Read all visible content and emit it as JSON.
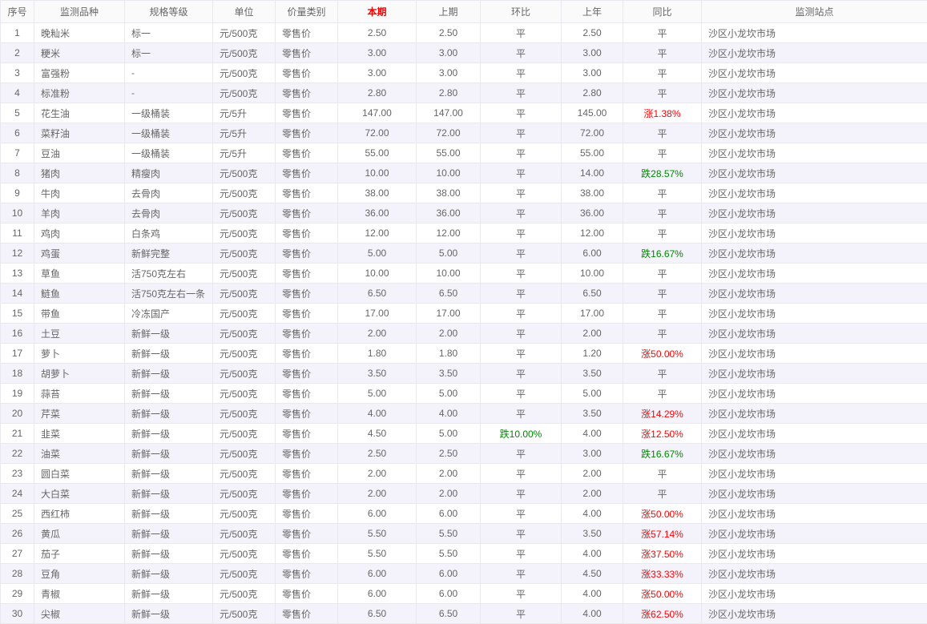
{
  "colors": {
    "up_red": "#ff0000",
    "down_green": "#008800",
    "header_highlight_red": "#ff0000",
    "text_gray": "#666666",
    "stripe_lavender": "#f4f2fa",
    "border_gray": "#e9e8ee",
    "header_bg": "#fafafa"
  },
  "table": {
    "columns": [
      {
        "key": "no",
        "label": "序号"
      },
      {
        "key": "variety",
        "label": "监测品种"
      },
      {
        "key": "spec",
        "label": "规格等级"
      },
      {
        "key": "unit",
        "label": "单位"
      },
      {
        "key": "category",
        "label": "价量类别"
      },
      {
        "key": "current",
        "label": "本期",
        "highlight": true
      },
      {
        "key": "previous",
        "label": "上期"
      },
      {
        "key": "mom",
        "label": "环比"
      },
      {
        "key": "last_year",
        "label": "上年"
      },
      {
        "key": "yoy",
        "label": "同比"
      },
      {
        "key": "station",
        "label": "监测站点"
      }
    ],
    "rows": [
      {
        "no": "1",
        "variety": "晚籼米",
        "spec": "标一",
        "unit": "元/500克",
        "category": "零售价",
        "current": "2.50",
        "previous": "2.50",
        "mom": "平",
        "mom_trend": "flat",
        "last_year": "2.50",
        "yoy": "平",
        "yoy_trend": "flat",
        "station": "沙区小龙坎市场"
      },
      {
        "no": "2",
        "variety": "粳米",
        "spec": "标一",
        "unit": "元/500克",
        "category": "零售价",
        "current": "3.00",
        "previous": "3.00",
        "mom": "平",
        "mom_trend": "flat",
        "last_year": "3.00",
        "yoy": "平",
        "yoy_trend": "flat",
        "station": "沙区小龙坎市场"
      },
      {
        "no": "3",
        "variety": "富强粉",
        "spec": "-",
        "unit": "元/500克",
        "category": "零售价",
        "current": "3.00",
        "previous": "3.00",
        "mom": "平",
        "mom_trend": "flat",
        "last_year": "3.00",
        "yoy": "平",
        "yoy_trend": "flat",
        "station": "沙区小龙坎市场"
      },
      {
        "no": "4",
        "variety": "标准粉",
        "spec": "-",
        "unit": "元/500克",
        "category": "零售价",
        "current": "2.80",
        "previous": "2.80",
        "mom": "平",
        "mom_trend": "flat",
        "last_year": "2.80",
        "yoy": "平",
        "yoy_trend": "flat",
        "station": "沙区小龙坎市场"
      },
      {
        "no": "5",
        "variety": "花生油",
        "spec": "一级桶装",
        "unit": "元/5升",
        "category": "零售价",
        "current": "147.00",
        "previous": "147.00",
        "mom": "平",
        "mom_trend": "flat",
        "last_year": "145.00",
        "yoy": "涨1.38%",
        "yoy_trend": "up",
        "station": "沙区小龙坎市场"
      },
      {
        "no": "6",
        "variety": "菜籽油",
        "spec": "一级桶装",
        "unit": "元/5升",
        "category": "零售价",
        "current": "72.00",
        "previous": "72.00",
        "mom": "平",
        "mom_trend": "flat",
        "last_year": "72.00",
        "yoy": "平",
        "yoy_trend": "flat",
        "station": "沙区小龙坎市场"
      },
      {
        "no": "7",
        "variety": "豆油",
        "spec": "一级桶装",
        "unit": "元/5升",
        "category": "零售价",
        "current": "55.00",
        "previous": "55.00",
        "mom": "平",
        "mom_trend": "flat",
        "last_year": "55.00",
        "yoy": "平",
        "yoy_trend": "flat",
        "station": "沙区小龙坎市场"
      },
      {
        "no": "8",
        "variety": "猪肉",
        "spec": "精瘦肉",
        "unit": "元/500克",
        "category": "零售价",
        "current": "10.00",
        "previous": "10.00",
        "mom": "平",
        "mom_trend": "flat",
        "last_year": "14.00",
        "yoy": "跌28.57%",
        "yoy_trend": "down",
        "station": "沙区小龙坎市场"
      },
      {
        "no": "9",
        "variety": "牛肉",
        "spec": "去骨肉",
        "unit": "元/500克",
        "category": "零售价",
        "current": "38.00",
        "previous": "38.00",
        "mom": "平",
        "mom_trend": "flat",
        "last_year": "38.00",
        "yoy": "平",
        "yoy_trend": "flat",
        "station": "沙区小龙坎市场"
      },
      {
        "no": "10",
        "variety": "羊肉",
        "spec": "去骨肉",
        "unit": "元/500克",
        "category": "零售价",
        "current": "36.00",
        "previous": "36.00",
        "mom": "平",
        "mom_trend": "flat",
        "last_year": "36.00",
        "yoy": "平",
        "yoy_trend": "flat",
        "station": "沙区小龙坎市场"
      },
      {
        "no": "11",
        "variety": "鸡肉",
        "spec": "白条鸡",
        "unit": "元/500克",
        "category": "零售价",
        "current": "12.00",
        "previous": "12.00",
        "mom": "平",
        "mom_trend": "flat",
        "last_year": "12.00",
        "yoy": "平",
        "yoy_trend": "flat",
        "station": "沙区小龙坎市场"
      },
      {
        "no": "12",
        "variety": "鸡蛋",
        "spec": "新鲜完整",
        "unit": "元/500克",
        "category": "零售价",
        "current": "5.00",
        "previous": "5.00",
        "mom": "平",
        "mom_trend": "flat",
        "last_year": "6.00",
        "yoy": "跌16.67%",
        "yoy_trend": "down",
        "station": "沙区小龙坎市场"
      },
      {
        "no": "13",
        "variety": "草鱼",
        "spec": "活750克左右",
        "unit": "元/500克",
        "category": "零售价",
        "current": "10.00",
        "previous": "10.00",
        "mom": "平",
        "mom_trend": "flat",
        "last_year": "10.00",
        "yoy": "平",
        "yoy_trend": "flat",
        "station": "沙区小龙坎市场"
      },
      {
        "no": "14",
        "variety": "鲢鱼",
        "spec": "活750克左右一条",
        "unit": "元/500克",
        "category": "零售价",
        "current": "6.50",
        "previous": "6.50",
        "mom": "平",
        "mom_trend": "flat",
        "last_year": "6.50",
        "yoy": "平",
        "yoy_trend": "flat",
        "station": "沙区小龙坎市场"
      },
      {
        "no": "15",
        "variety": "带鱼",
        "spec": "冷冻国产",
        "unit": "元/500克",
        "category": "零售价",
        "current": "17.00",
        "previous": "17.00",
        "mom": "平",
        "mom_trend": "flat",
        "last_year": "17.00",
        "yoy": "平",
        "yoy_trend": "flat",
        "station": "沙区小龙坎市场"
      },
      {
        "no": "16",
        "variety": "土豆",
        "spec": "新鲜一级",
        "unit": "元/500克",
        "category": "零售价",
        "current": "2.00",
        "previous": "2.00",
        "mom": "平",
        "mom_trend": "flat",
        "last_year": "2.00",
        "yoy": "平",
        "yoy_trend": "flat",
        "station": "沙区小龙坎市场"
      },
      {
        "no": "17",
        "variety": "萝卜",
        "spec": "新鲜一级",
        "unit": "元/500克",
        "category": "零售价",
        "current": "1.80",
        "previous": "1.80",
        "mom": "平",
        "mom_trend": "flat",
        "last_year": "1.20",
        "yoy": "涨50.00%",
        "yoy_trend": "up",
        "station": "沙区小龙坎市场"
      },
      {
        "no": "18",
        "variety": "胡萝卜",
        "spec": "新鲜一级",
        "unit": "元/500克",
        "category": "零售价",
        "current": "3.50",
        "previous": "3.50",
        "mom": "平",
        "mom_trend": "flat",
        "last_year": "3.50",
        "yoy": "平",
        "yoy_trend": "flat",
        "station": "沙区小龙坎市场"
      },
      {
        "no": "19",
        "variety": "蒜苔",
        "spec": "新鲜一级",
        "unit": "元/500克",
        "category": "零售价",
        "current": "5.00",
        "previous": "5.00",
        "mom": "平",
        "mom_trend": "flat",
        "last_year": "5.00",
        "yoy": "平",
        "yoy_trend": "flat",
        "station": "沙区小龙坎市场"
      },
      {
        "no": "20",
        "variety": "芹菜",
        "spec": "新鲜一级",
        "unit": "元/500克",
        "category": "零售价",
        "current": "4.00",
        "previous": "4.00",
        "mom": "平",
        "mom_trend": "flat",
        "last_year": "3.50",
        "yoy": "涨14.29%",
        "yoy_trend": "up",
        "station": "沙区小龙坎市场"
      },
      {
        "no": "21",
        "variety": "韭菜",
        "spec": "新鲜一级",
        "unit": "元/500克",
        "category": "零售价",
        "current": "4.50",
        "previous": "5.00",
        "mom": "跌10.00%",
        "mom_trend": "down",
        "last_year": "4.00",
        "yoy": "涨12.50%",
        "yoy_trend": "up",
        "station": "沙区小龙坎市场"
      },
      {
        "no": "22",
        "variety": "油菜",
        "spec": "新鲜一级",
        "unit": "元/500克",
        "category": "零售价",
        "current": "2.50",
        "previous": "2.50",
        "mom": "平",
        "mom_trend": "flat",
        "last_year": "3.00",
        "yoy": "跌16.67%",
        "yoy_trend": "down",
        "station": "沙区小龙坎市场"
      },
      {
        "no": "23",
        "variety": "圆白菜",
        "spec": "新鲜一级",
        "unit": "元/500克",
        "category": "零售价",
        "current": "2.00",
        "previous": "2.00",
        "mom": "平",
        "mom_trend": "flat",
        "last_year": "2.00",
        "yoy": "平",
        "yoy_trend": "flat",
        "station": "沙区小龙坎市场"
      },
      {
        "no": "24",
        "variety": "大白菜",
        "spec": "新鲜一级",
        "unit": "元/500克",
        "category": "零售价",
        "current": "2.00",
        "previous": "2.00",
        "mom": "平",
        "mom_trend": "flat",
        "last_year": "2.00",
        "yoy": "平",
        "yoy_trend": "flat",
        "station": "沙区小龙坎市场"
      },
      {
        "no": "25",
        "variety": "西红柿",
        "spec": "新鲜一级",
        "unit": "元/500克",
        "category": "零售价",
        "current": "6.00",
        "previous": "6.00",
        "mom": "平",
        "mom_trend": "flat",
        "last_year": "4.00",
        "yoy": "涨50.00%",
        "yoy_trend": "up",
        "station": "沙区小龙坎市场"
      },
      {
        "no": "26",
        "variety": "黄瓜",
        "spec": "新鲜一级",
        "unit": "元/500克",
        "category": "零售价",
        "current": "5.50",
        "previous": "5.50",
        "mom": "平",
        "mom_trend": "flat",
        "last_year": "3.50",
        "yoy": "涨57.14%",
        "yoy_trend": "up",
        "station": "沙区小龙坎市场"
      },
      {
        "no": "27",
        "variety": "茄子",
        "spec": "新鲜一级",
        "unit": "元/500克",
        "category": "零售价",
        "current": "5.50",
        "previous": "5.50",
        "mom": "平",
        "mom_trend": "flat",
        "last_year": "4.00",
        "yoy": "涨37.50%",
        "yoy_trend": "up",
        "station": "沙区小龙坎市场"
      },
      {
        "no": "28",
        "variety": "豆角",
        "spec": "新鲜一级",
        "unit": "元/500克",
        "category": "零售价",
        "current": "6.00",
        "previous": "6.00",
        "mom": "平",
        "mom_trend": "flat",
        "last_year": "4.50",
        "yoy": "涨33.33%",
        "yoy_trend": "up",
        "station": "沙区小龙坎市场"
      },
      {
        "no": "29",
        "variety": "青椒",
        "spec": "新鲜一级",
        "unit": "元/500克",
        "category": "零售价",
        "current": "6.00",
        "previous": "6.00",
        "mom": "平",
        "mom_trend": "flat",
        "last_year": "4.00",
        "yoy": "涨50.00%",
        "yoy_trend": "up",
        "station": "沙区小龙坎市场"
      },
      {
        "no": "30",
        "variety": "尖椒",
        "spec": "新鲜一级",
        "unit": "元/500克",
        "category": "零售价",
        "current": "6.50",
        "previous": "6.50",
        "mom": "平",
        "mom_trend": "flat",
        "last_year": "4.00",
        "yoy": "涨62.50%",
        "yoy_trend": "up",
        "station": "沙区小龙坎市场"
      }
    ]
  }
}
